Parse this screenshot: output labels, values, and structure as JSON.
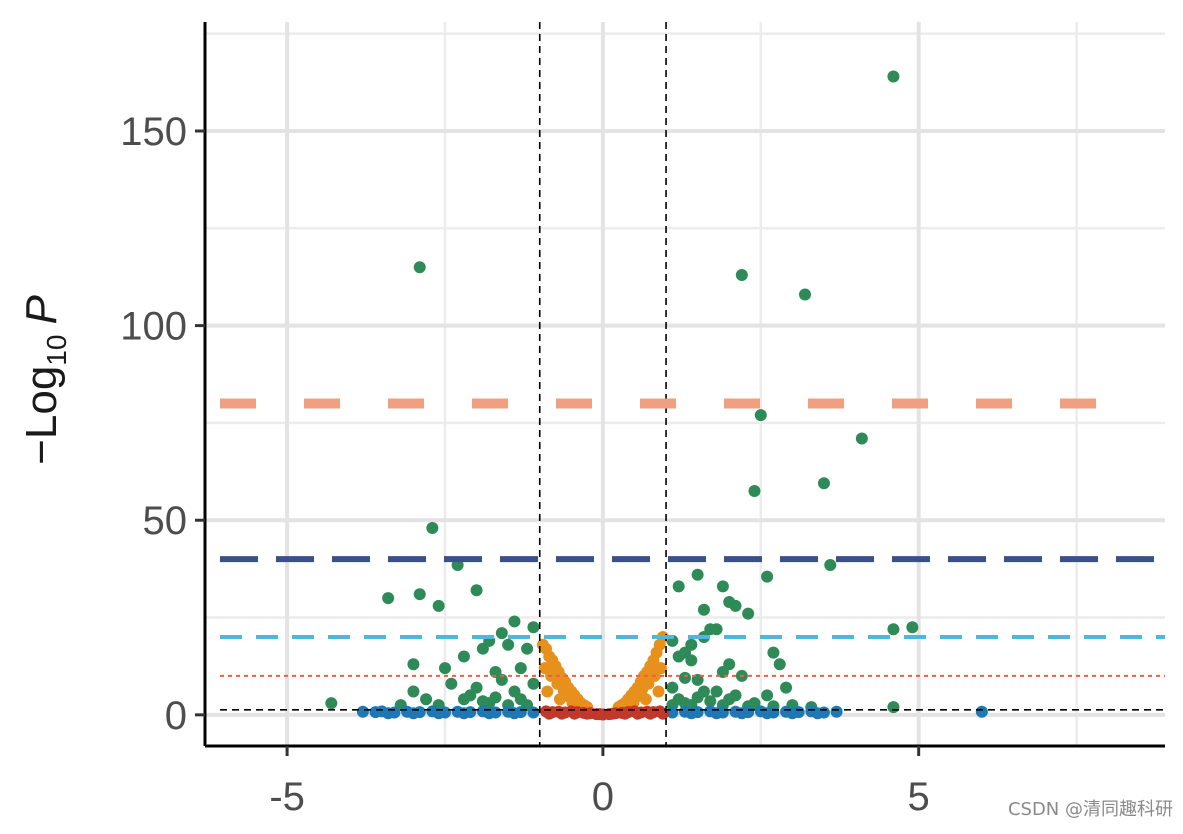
{
  "watermark": "CSDN @清同趣科研",
  "chart_data": {
    "type": "scatter",
    "title": "",
    "xlabel": "",
    "ylabel": "−Log₁₀ P",
    "ylabel_parts": {
      "prefix": "−Log",
      "subscript": "10",
      "italic": "P"
    },
    "xlim": [
      -6.3,
      8.9
    ],
    "ylim": [
      -8,
      178
    ],
    "grid": true,
    "x_ticks": [
      -5,
      0,
      5
    ],
    "x_tick_labels": [
      "-5",
      "0",
      "5"
    ],
    "y_ticks": [
      0,
      50,
      100,
      150
    ],
    "y_tick_labels": [
      "0",
      "50",
      "100",
      "150"
    ],
    "x_minor_grid": [
      -7.5,
      -2.5,
      2.5,
      7.5
    ],
    "y_minor_grid": [
      25,
      75,
      125,
      175
    ],
    "reference_lines": [
      {
        "orientation": "vertical",
        "value": -1,
        "color": "#000000",
        "style": "dashed"
      },
      {
        "orientation": "vertical",
        "value": 1,
        "color": "#000000",
        "style": "dashed"
      },
      {
        "orientation": "horizontal",
        "value": 1.3,
        "color": "#000000",
        "style": "dashed"
      },
      {
        "orientation": "horizontal",
        "value": 10,
        "color": "#e8604c",
        "style": "dotted"
      },
      {
        "orientation": "horizontal",
        "value": 20,
        "color": "#4fb8d9",
        "style": "dashed"
      },
      {
        "orientation": "horizontal",
        "value": 40,
        "color": "#3b4f8a",
        "style": "dashed"
      },
      {
        "orientation": "horizontal",
        "value": 80,
        "color": "#f0a080",
        "style": "dashed"
      }
    ],
    "colors": {
      "ns": "#c0392b",
      "log2fc": "#e8901c",
      "p_value": "#1f78b4",
      "p_and_log2fc": "#2e8b57"
    },
    "series": [
      {
        "group": "p_and_log2fc",
        "x": [
          4.6,
          -2.9,
          2.2,
          3.2,
          2.5,
          4.1,
          3.5,
          2.4,
          -2.7,
          3.6,
          2.6,
          -2.3,
          -3.4,
          -2.9,
          -2.0,
          -2.6,
          1.2,
          1.5,
          1.9,
          1.6,
          2.1,
          2.3,
          2.0,
          -1.4,
          1.8,
          -1.1,
          -1.6,
          -1.8,
          1.4,
          2.7,
          1.3,
          1.6,
          1.1,
          1.7,
          4.6,
          4.9,
          -3.0,
          -2.2,
          -1.9,
          -1.5,
          -1.2,
          1.2,
          1.4,
          2.0,
          2.8,
          -2.5,
          -1.7,
          -1.3,
          1.9,
          2.2,
          1.5,
          1.3,
          2.9,
          -2.4,
          -1.6,
          -1.1,
          1.1,
          1.6,
          -3.0,
          -2.0,
          -1.4,
          1.8,
          2.1,
          2.6,
          -2.8,
          -2.2,
          -1.9,
          -1.3,
          1.2,
          1.7,
          2.4,
          3.0,
          4.6,
          -4.3,
          -3.2,
          -2.6,
          -1.8,
          -1.5,
          -1.2,
          1.1,
          1.4,
          1.9,
          2.3,
          2.7,
          3.3,
          -2.1,
          -1.7,
          1.5,
          2.0,
          1.3
        ],
        "y": [
          164,
          115,
          113,
          108,
          77,
          71,
          59.5,
          57.5,
          48,
          38.5,
          35.5,
          38.5,
          30,
          31,
          32,
          28,
          33,
          36,
          33,
          27,
          28,
          26,
          29,
          24,
          22,
          22.5,
          21,
          19,
          18,
          16,
          16,
          20,
          19,
          22,
          22,
          22.5,
          13,
          15,
          17,
          18,
          17,
          15,
          14,
          13,
          13,
          12,
          11,
          12,
          11,
          10,
          9,
          9.5,
          7,
          8,
          9,
          8,
          7,
          6,
          6,
          7,
          6,
          6,
          5,
          5,
          4,
          4,
          3.5,
          4,
          4,
          3.5,
          3,
          2.5,
          2,
          3,
          2.5,
          2.5,
          3,
          2.5,
          2.5,
          2.5,
          2.5,
          2.5,
          2.2,
          2.2,
          2,
          5,
          4.5,
          4.5,
          4,
          3
        ]
      },
      {
        "group": "log2fc",
        "x": [
          -0.95,
          -0.9,
          -0.85,
          -0.8,
          -0.75,
          -0.7,
          -0.65,
          -0.6,
          -0.55,
          -0.5,
          -0.45,
          -0.4,
          -0.35,
          -0.3,
          -0.25,
          -0.92,
          -0.82,
          -0.72,
          -0.62,
          -0.52,
          -0.42,
          -0.88,
          -0.68,
          -0.48,
          0.95,
          0.9,
          0.85,
          0.8,
          0.75,
          0.7,
          0.65,
          0.6,
          0.55,
          0.5,
          0.45,
          0.4,
          0.35,
          0.3,
          0.25,
          0.92,
          0.82,
          0.72,
          0.62,
          0.52,
          0.42,
          0.88,
          0.68,
          0.48
        ],
        "y": [
          18,
          17,
          15,
          14,
          12.5,
          11,
          9.5,
          8.5,
          7,
          6,
          5,
          4,
          3,
          2.5,
          2,
          12,
          10,
          8,
          6,
          4.5,
          3.5,
          6,
          4,
          3,
          20,
          18,
          16,
          14,
          12.5,
          11,
          10,
          8.5,
          7,
          6,
          5,
          4,
          3,
          2.5,
          2,
          12,
          10,
          8,
          6.5,
          4.5,
          3.5,
          6,
          4,
          3
        ]
      },
      {
        "group": "p_value",
        "x": [
          -3.8,
          -3.6,
          -3.5,
          -3.3,
          -3.1,
          -2.9,
          -2.7,
          -2.5,
          -2.3,
          -2.1,
          -1.9,
          -1.7,
          -1.5,
          -1.3,
          -1.1,
          -3.4,
          -3.0,
          -2.6,
          -2.2,
          -1.8,
          -1.4,
          1.1,
          1.3,
          1.5,
          1.7,
          1.9,
          2.1,
          2.3,
          2.5,
          2.7,
          2.9,
          3.1,
          3.3,
          3.5,
          3.7,
          6.0,
          1.4,
          1.8,
          2.2,
          2.6,
          3.0,
          3.4
        ],
        "y": [
          0.8,
          0.7,
          0.9,
          0.6,
          0.8,
          0.7,
          0.9,
          0.6,
          0.8,
          0.7,
          0.9,
          0.6,
          0.8,
          0.7,
          0.6,
          0.4,
          0.4,
          0.4,
          0.4,
          0.4,
          0.4,
          0.6,
          0.8,
          0.7,
          0.9,
          0.6,
          0.8,
          0.7,
          0.9,
          0.6,
          0.8,
          0.7,
          0.9,
          0.6,
          0.8,
          0.8,
          0.4,
          0.4,
          0.4,
          0.4,
          0.4,
          0.4
        ]
      },
      {
        "group": "ns",
        "x": [
          -0.9,
          -0.8,
          -0.7,
          -0.6,
          -0.5,
          -0.4,
          -0.3,
          -0.2,
          -0.1,
          0.0,
          0.1,
          0.2,
          0.3,
          0.4,
          0.5,
          0.6,
          0.7,
          0.8,
          0.9,
          -0.85,
          -0.65,
          -0.45,
          -0.25,
          -0.05,
          0.15,
          0.35,
          0.55,
          0.75,
          0.95
        ],
        "y": [
          0.9,
          0.7,
          0.8,
          0.6,
          0.9,
          0.7,
          0.5,
          0.4,
          0.2,
          0.1,
          0.2,
          0.4,
          0.5,
          0.7,
          0.9,
          0.6,
          0.8,
          0.7,
          0.9,
          0.3,
          0.3,
          0.3,
          0.3,
          0.2,
          0.3,
          0.3,
          0.3,
          0.3,
          0.3
        ]
      }
    ]
  }
}
